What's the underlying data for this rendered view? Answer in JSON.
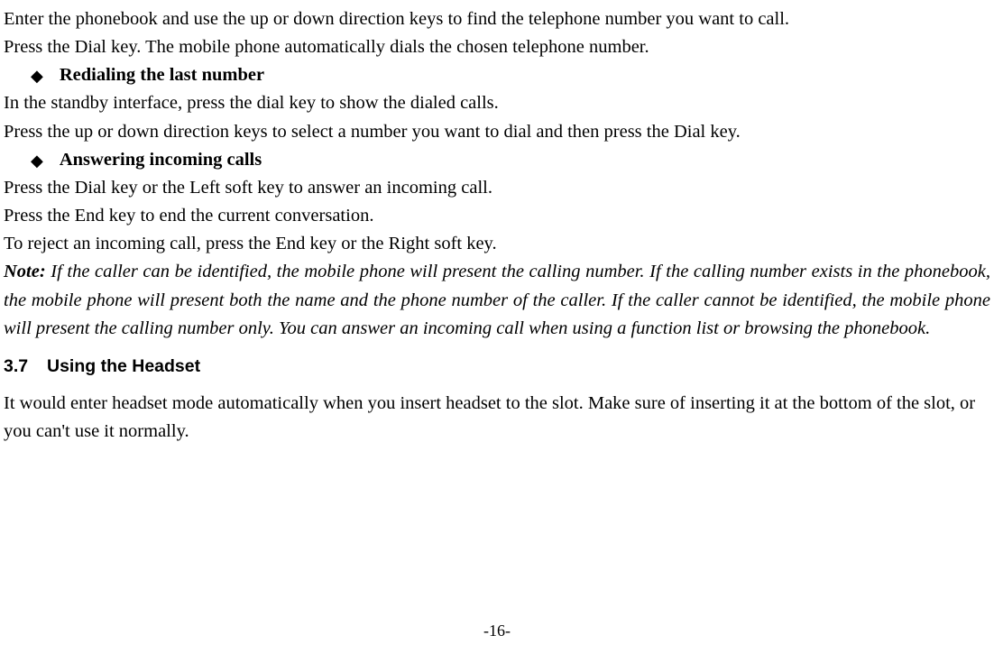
{
  "paragraphs": {
    "p1": "Enter the phonebook and use the up or down direction keys to find the telephone number you want to call.",
    "p2": "Press the Dial key. The mobile phone automatically dials the chosen telephone number.",
    "p3": "In the standby interface, press the dial key to show the dialed calls.",
    "p4": "Press the up or down direction keys to select a number you want to dial and then press the Dial key.",
    "p5": "Press the Dial key or the Left soft key to answer an incoming call.",
    "p6": "Press the End key to end the current conversation.",
    "p7": "To reject an incoming call, press the End key or the Right soft key.",
    "p8": "It would enter headset mode automatically when you insert headset to the slot. Make sure of inserting it at the bottom of the slot, or you can't use it normally."
  },
  "bullets": {
    "b1": "Redialing the last number",
    "b2": "Answering incoming calls"
  },
  "note": {
    "lead": "Note:",
    "body": " If the caller can be identified, the mobile phone will present the calling number. If the calling number exists in the phonebook, the mobile phone will present both the name and the phone number of the caller. If the caller cannot be identified, the mobile phone will present the calling number only. You can answer an incoming call when using a function list or browsing the phonebook."
  },
  "section": {
    "num": "3.7",
    "title": "Using the Headset"
  },
  "glyphs": {
    "diamond": "◆"
  },
  "pageNumber": "-16-"
}
